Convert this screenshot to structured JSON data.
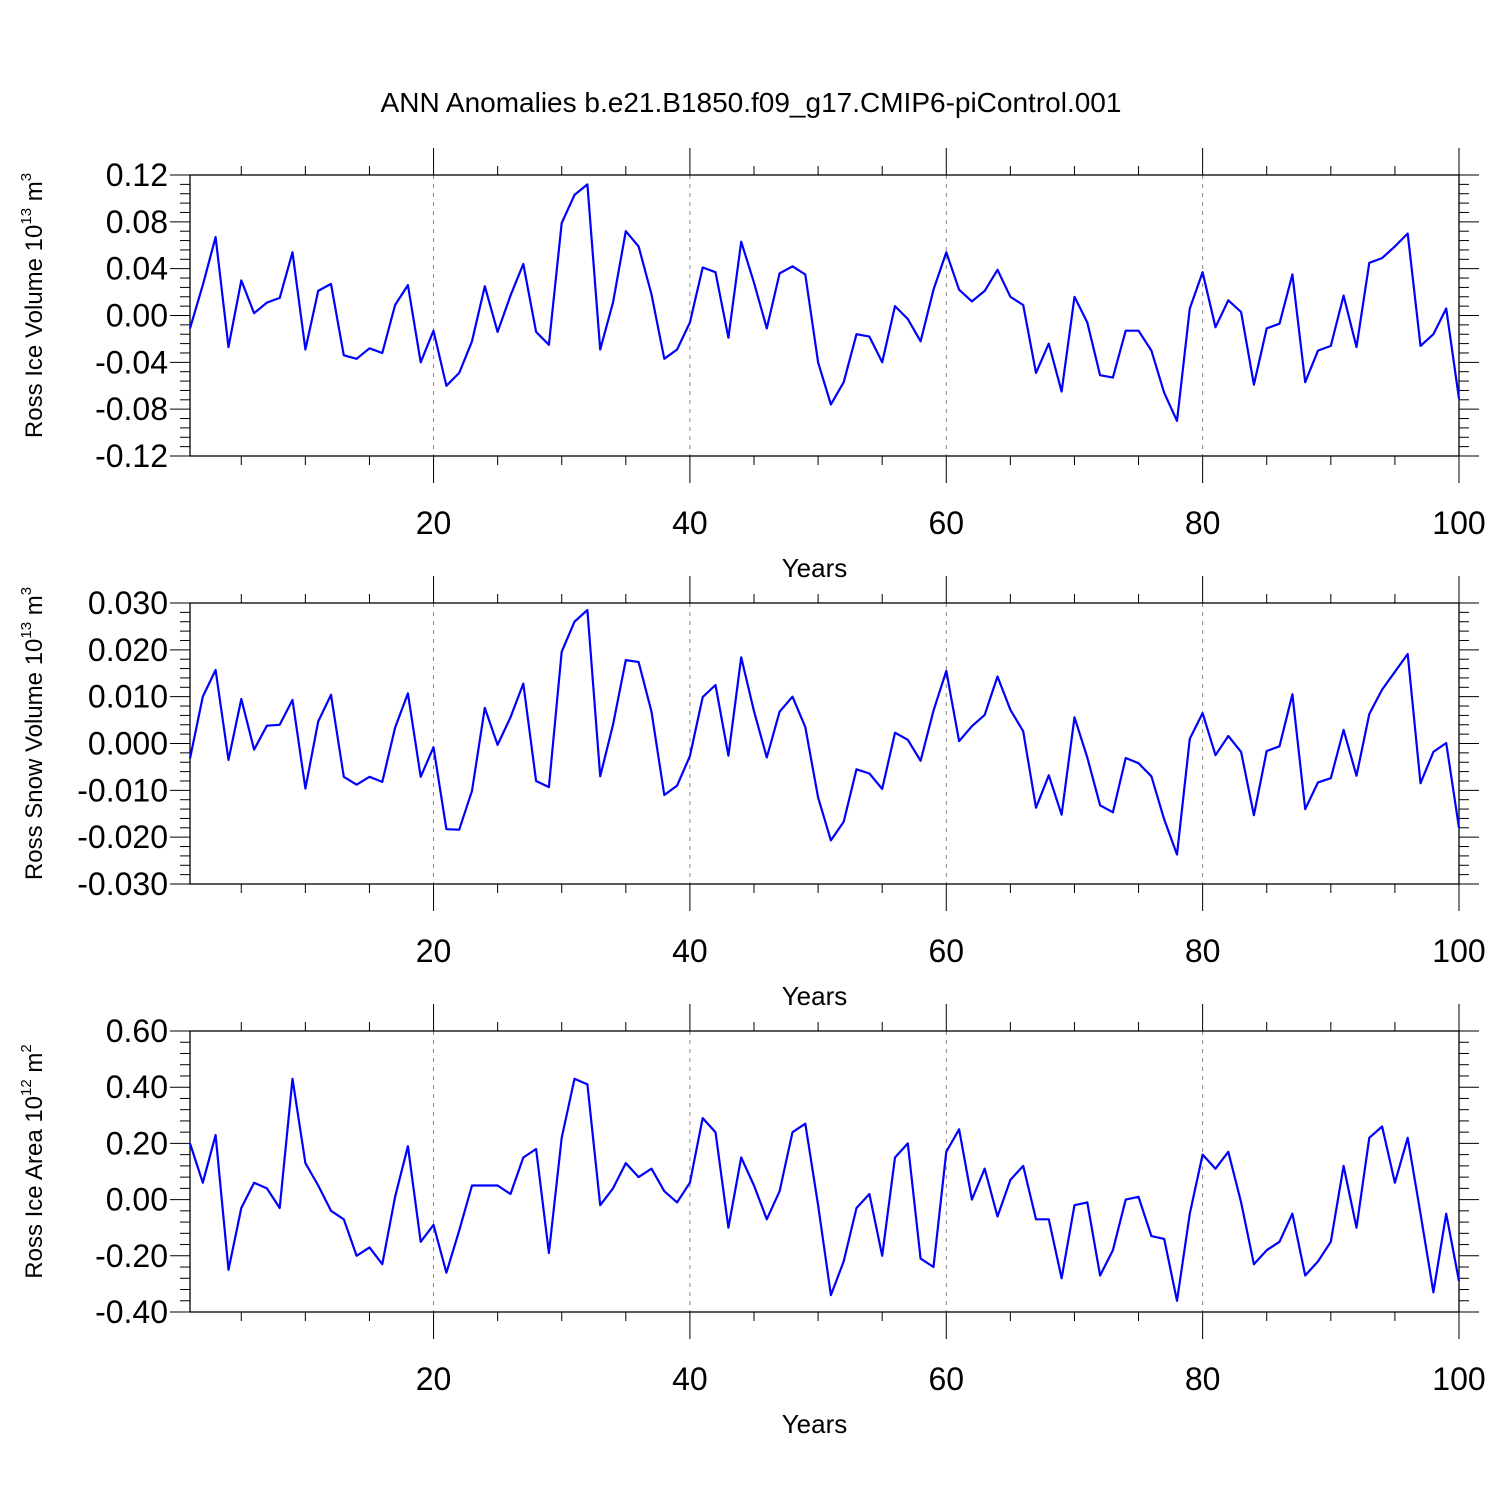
{
  "title": "ANN Anomalies b.e21.B1850.f09_g17.CMIP6-piControl.001",
  "line_color": "#0000ff",
  "chart_data": [
    {
      "type": "line",
      "ylabel_main": "Ross Ice Volume 10",
      "ylabel_exp": "13",
      "ylabel_unit": " m",
      "ylabel_unit_exp": "3",
      "xlabel": "Years",
      "xlim": [
        1,
        100
      ],
      "ylim": [
        -0.12,
        0.12
      ],
      "xticks": [
        20,
        40,
        60,
        80,
        100
      ],
      "xtick_labels": [
        "20",
        "40",
        "60",
        "80",
        "100"
      ],
      "yticks": [
        -0.12,
        -0.08,
        -0.04,
        0.0,
        0.04,
        0.08,
        0.12
      ],
      "ytick_labels": [
        "-0.12",
        "-0.08",
        "-0.04",
        "0.00",
        "0.04",
        "0.08",
        "0.12"
      ],
      "grid_x": [
        20,
        40,
        60,
        80
      ],
      "values": [
        -0.011,
        0.026,
        0.067,
        -0.027,
        0.03,
        0.002,
        0.011,
        0.015,
        0.054,
        -0.029,
        0.021,
        0.027,
        -0.034,
        -0.037,
        -0.028,
        -0.032,
        0.009,
        0.026,
        -0.04,
        -0.013,
        -0.06,
        -0.049,
        -0.022,
        0.025,
        -0.014,
        0.017,
        0.044,
        -0.014,
        -0.025,
        0.079,
        0.103,
        0.112,
        -0.029,
        0.011,
        0.072,
        0.059,
        0.018,
        -0.037,
        -0.029,
        -0.006,
        0.041,
        0.037,
        -0.019,
        0.063,
        0.028,
        -0.011,
        0.036,
        0.042,
        0.035,
        -0.04,
        -0.076,
        -0.057,
        -0.016,
        -0.018,
        -0.04,
        0.008,
        -0.003,
        -0.022,
        0.022,
        0.054,
        0.022,
        0.012,
        0.021,
        0.039,
        0.016,
        0.009,
        -0.049,
        -0.024,
        -0.065,
        0.016,
        -0.006,
        -0.051,
        -0.053,
        -0.013,
        -0.013,
        -0.03,
        -0.066,
        -0.09,
        0.006,
        0.037,
        -0.01,
        0.013,
        0.003,
        -0.059,
        -0.011,
        -0.007,
        0.035,
        -0.057,
        -0.03,
        -0.026,
        0.017,
        -0.027,
        0.045,
        0.049,
        0.059,
        0.07,
        -0.026,
        -0.016,
        0.006,
        -0.071
      ]
    },
    {
      "type": "line",
      "ylabel_main": "Ross Snow Volume 10",
      "ylabel_exp": "13",
      "ylabel_unit": " m",
      "ylabel_unit_exp": "3",
      "xlabel": "Years",
      "xlim": [
        1,
        100
      ],
      "ylim": [
        -0.03,
        0.03
      ],
      "xticks": [
        20,
        40,
        60,
        80,
        100
      ],
      "xtick_labels": [
        "20",
        "40",
        "60",
        "80",
        "100"
      ],
      "yticks": [
        -0.03,
        -0.02,
        -0.01,
        0.0,
        0.01,
        0.02,
        0.03
      ],
      "ytick_labels": [
        "-0.030",
        "-0.020",
        "-0.010",
        "0.000",
        "0.010",
        "0.020",
        "0.030"
      ],
      "grid_x": [
        20,
        40,
        60,
        80
      ],
      "values": [
        -0.0032,
        0.01,
        0.0157,
        -0.0035,
        0.0095,
        -0.0013,
        0.0038,
        0.004,
        0.0093,
        -0.0096,
        0.0047,
        0.0104,
        -0.0071,
        -0.0088,
        -0.0071,
        -0.0082,
        0.0034,
        0.0107,
        -0.0071,
        -0.0008,
        -0.0183,
        -0.0184,
        -0.0101,
        0.0076,
        -0.0003,
        0.0056,
        0.0128,
        -0.008,
        -0.0093,
        0.0196,
        0.026,
        0.0285,
        -0.007,
        0.004,
        0.0178,
        0.0174,
        0.0068,
        -0.011,
        -0.009,
        -0.0027,
        0.0099,
        0.0125,
        -0.0026,
        0.0184,
        0.0069,
        -0.003,
        0.0068,
        0.01,
        0.0035,
        -0.0115,
        -0.0207,
        -0.0167,
        -0.0055,
        -0.0064,
        -0.0097,
        0.0023,
        0.0008,
        -0.0037,
        0.007,
        0.0155,
        0.0005,
        0.0037,
        0.0061,
        0.0143,
        0.0072,
        0.0026,
        -0.0137,
        -0.0068,
        -0.0152,
        0.0056,
        -0.003,
        -0.0132,
        -0.0147,
        -0.0031,
        -0.0042,
        -0.007,
        -0.0162,
        -0.0237,
        0.001,
        0.0065,
        -0.0025,
        0.0016,
        -0.0018,
        -0.0153,
        -0.0016,
        -0.0006,
        0.0105,
        -0.014,
        -0.0083,
        -0.0074,
        0.0029,
        -0.0069,
        0.0063,
        0.0115,
        0.0153,
        0.0191,
        -0.0085,
        -0.0018,
        0.0001,
        -0.018
      ]
    },
    {
      "type": "line",
      "ylabel_main": "Ross Ice Area 10",
      "ylabel_exp": "12",
      "ylabel_unit": " m",
      "ylabel_unit_exp": "2",
      "xlabel": "Years",
      "xlim": [
        1,
        100
      ],
      "ylim": [
        -0.4,
        0.6
      ],
      "xticks": [
        20,
        40,
        60,
        80,
        100
      ],
      "xtick_labels": [
        "20",
        "40",
        "60",
        "80",
        "100"
      ],
      "yticks": [
        -0.4,
        -0.2,
        0.0,
        0.2,
        0.4,
        0.6
      ],
      "ytick_labels": [
        "-0.40",
        "-0.20",
        "0.00",
        "0.20",
        "0.40",
        "0.60"
      ],
      "grid_x": [
        20,
        40,
        60,
        80
      ],
      "values": [
        0.2,
        0.06,
        0.23,
        -0.25,
        -0.03,
        0.06,
        0.04,
        -0.03,
        0.43,
        0.13,
        0.05,
        -0.04,
        -0.07,
        -0.2,
        -0.17,
        -0.23,
        0.01,
        0.19,
        -0.15,
        -0.09,
        -0.26,
        -0.11,
        0.05,
        0.05,
        0.05,
        0.02,
        0.15,
        0.18,
        -0.19,
        0.22,
        0.43,
        0.41,
        -0.02,
        0.04,
        0.13,
        0.08,
        0.11,
        0.03,
        -0.01,
        0.06,
        0.29,
        0.24,
        -0.1,
        0.15,
        0.05,
        -0.07,
        0.03,
        0.24,
        0.27,
        -0.02,
        -0.34,
        -0.22,
        -0.03,
        0.02,
        -0.2,
        0.15,
        0.2,
        -0.21,
        -0.24,
        0.17,
        0.25,
        0.0,
        0.11,
        -0.06,
        0.07,
        0.12,
        -0.07,
        -0.07,
        -0.28,
        -0.02,
        -0.01,
        -0.27,
        -0.18,
        0.0,
        0.01,
        -0.13,
        -0.14,
        -0.36,
        -0.05,
        0.16,
        0.11,
        0.17,
        -0.01,
        -0.23,
        -0.18,
        -0.15,
        -0.05,
        -0.27,
        -0.22,
        -0.15,
        0.12,
        -0.1,
        0.22,
        0.26,
        0.06,
        0.22,
        -0.05,
        -0.33,
        -0.05,
        -0.29
      ]
    }
  ]
}
